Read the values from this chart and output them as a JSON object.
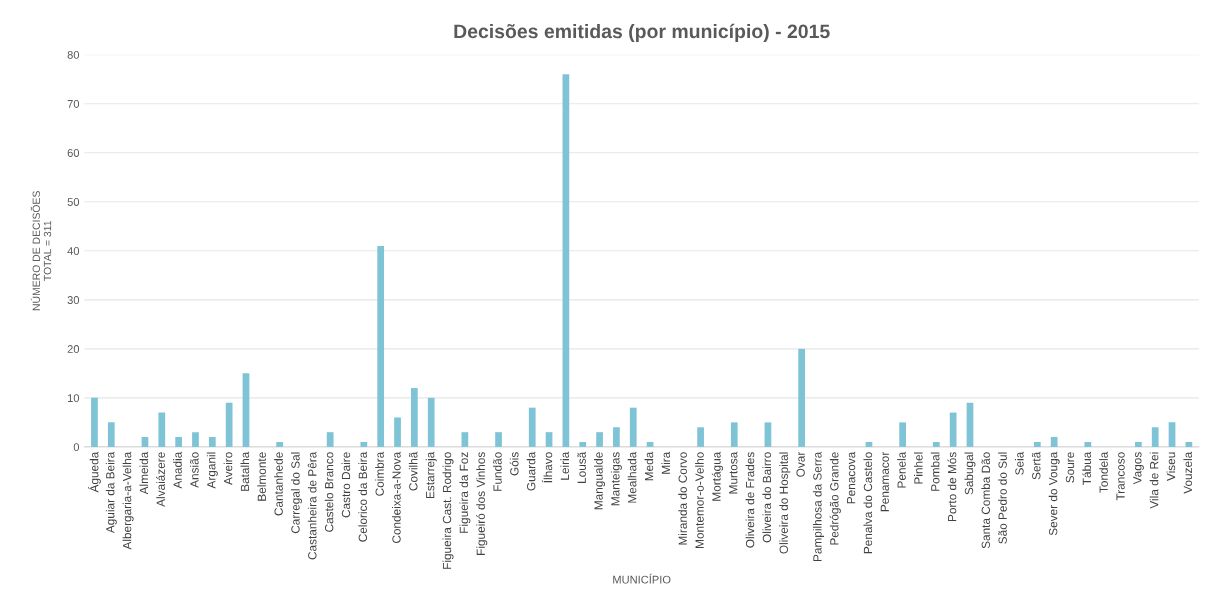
{
  "chart_data": {
    "type": "bar",
    "title": "Decisões emitidas (por município) - 2015",
    "xlabel": "MUNICÍPIO",
    "ylabel": "NÚMERO DE DECISÕES\nTOTAL = 311",
    "categories": [
      "Águeda",
      "Aguiar da Beira",
      "Albergaria-a-Velha",
      "Almeida",
      "Alvaiázere",
      "Anadia",
      "Ansião",
      "Arganil",
      "Aveiro",
      "Batalha",
      "Belmonte",
      "Cantanhede",
      "Carregal do Sal",
      "Castanheira de Pêra",
      "Castelo Branco",
      "Castro Daire",
      "Celorico da Beira",
      "Coimbra",
      "Condeixa-a-Nova",
      "Covilhã",
      "Estarreja",
      "Figueira Cast. Rodrigo",
      "Figueira da Foz",
      "Figueiró dos Vinhos",
      "Fundão",
      "Góis",
      "Guarda",
      "Ílhavo",
      "Leiria",
      "Lousã",
      "Mangualde",
      "Manteigas",
      "Mealhada",
      "Meda",
      "Mira",
      "Miranda do Corvo",
      "Montemor-o-Velho",
      "Mortágua",
      "Murtosa",
      "Oliveira de Frades",
      "Oliveira do Bairro",
      "Oliveira do Hospital",
      "Ovar",
      "Pampilhosa da Serra",
      "Pedrógão Grande",
      "Penacova",
      "Penalva do Castelo",
      "Penamacor",
      "Penela",
      "Pinhel",
      "Pombal",
      "Porto de Mós",
      "Sabugal",
      "Santa Comba Dão",
      "São Pedro do Sul",
      "Seia",
      "Sertã",
      "Sever do Vouga",
      "Soure",
      "Tábua",
      "Tondela",
      "Trancoso",
      "Vagos",
      "Vila de Rei",
      "Viseu",
      "Vouzela"
    ],
    "values": [
      10,
      5,
      0,
      2,
      7,
      2,
      3,
      2,
      9,
      15,
      0,
      1,
      0,
      0,
      3,
      0,
      1,
      41,
      6,
      12,
      10,
      0,
      3,
      0,
      3,
      0,
      8,
      3,
      76,
      1,
      3,
      4,
      8,
      1,
      0,
      0,
      4,
      0,
      5,
      0,
      5,
      0,
      20,
      0,
      0,
      0,
      1,
      0,
      5,
      0,
      1,
      7,
      9,
      0,
      0,
      0,
      1,
      2,
      0,
      1,
      0,
      0,
      1,
      4,
      5,
      1
    ],
    "color": "#7ec4d6",
    "ylim": [
      0,
      80
    ],
    "yticks": [
      0,
      10,
      20,
      30,
      40,
      50,
      60,
      70,
      80
    ],
    "grid": "y"
  }
}
